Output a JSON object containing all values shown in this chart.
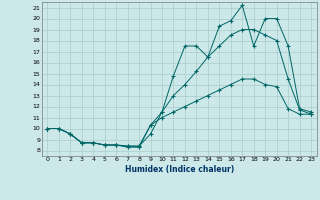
{
  "xlabel": "Humidex (Indice chaleur)",
  "bg_color": "#cce8e8",
  "grid_color": "#aacccc",
  "line_color": "#006666",
  "xlim": [
    -0.5,
    23.5
  ],
  "ylim": [
    7.5,
    21.5
  ],
  "xticks": [
    0,
    1,
    2,
    3,
    4,
    5,
    6,
    7,
    8,
    9,
    10,
    11,
    12,
    13,
    14,
    15,
    16,
    17,
    18,
    19,
    20,
    21,
    22,
    23
  ],
  "yticks": [
    8,
    9,
    10,
    11,
    12,
    13,
    14,
    15,
    16,
    17,
    18,
    19,
    20,
    21
  ],
  "line_top_x": [
    0,
    1,
    2,
    3,
    4,
    5,
    6,
    7,
    8,
    9,
    10,
    11,
    12,
    13,
    14,
    15,
    16,
    17,
    18,
    19,
    20,
    21,
    22,
    23
  ],
  "line_top_y": [
    10,
    10,
    9.5,
    8.7,
    8.7,
    8.5,
    8.5,
    8.4,
    8.4,
    9.5,
    11.5,
    14.8,
    17.5,
    17.5,
    16.5,
    19.3,
    19.8,
    21.2,
    17.5,
    20.0,
    20.0,
    17.5,
    11.8,
    11.5
  ],
  "line_mid_x": [
    0,
    1,
    2,
    3,
    4,
    5,
    6,
    7,
    8,
    9,
    10,
    11,
    12,
    13,
    14,
    15,
    16,
    17,
    18,
    19,
    20,
    21,
    22,
    23
  ],
  "line_mid_y": [
    10,
    10,
    9.5,
    8.7,
    8.7,
    8.5,
    8.5,
    8.4,
    8.4,
    10.3,
    11.5,
    13.0,
    14.0,
    15.2,
    16.5,
    17.5,
    18.5,
    19.0,
    19.0,
    18.5,
    18.0,
    14.5,
    11.7,
    11.3
  ],
  "line_bot_x": [
    0,
    1,
    2,
    3,
    4,
    5,
    6,
    7,
    8,
    9,
    10,
    11,
    12,
    13,
    14,
    15,
    16,
    17,
    18,
    19,
    20,
    21,
    22,
    23
  ],
  "line_bot_y": [
    10,
    10,
    9.5,
    8.7,
    8.7,
    8.5,
    8.5,
    8.3,
    8.3,
    10.3,
    11.0,
    11.5,
    12.0,
    12.5,
    13.0,
    13.5,
    14.0,
    14.5,
    14.5,
    14.0,
    13.8,
    11.8,
    11.3,
    11.3
  ]
}
